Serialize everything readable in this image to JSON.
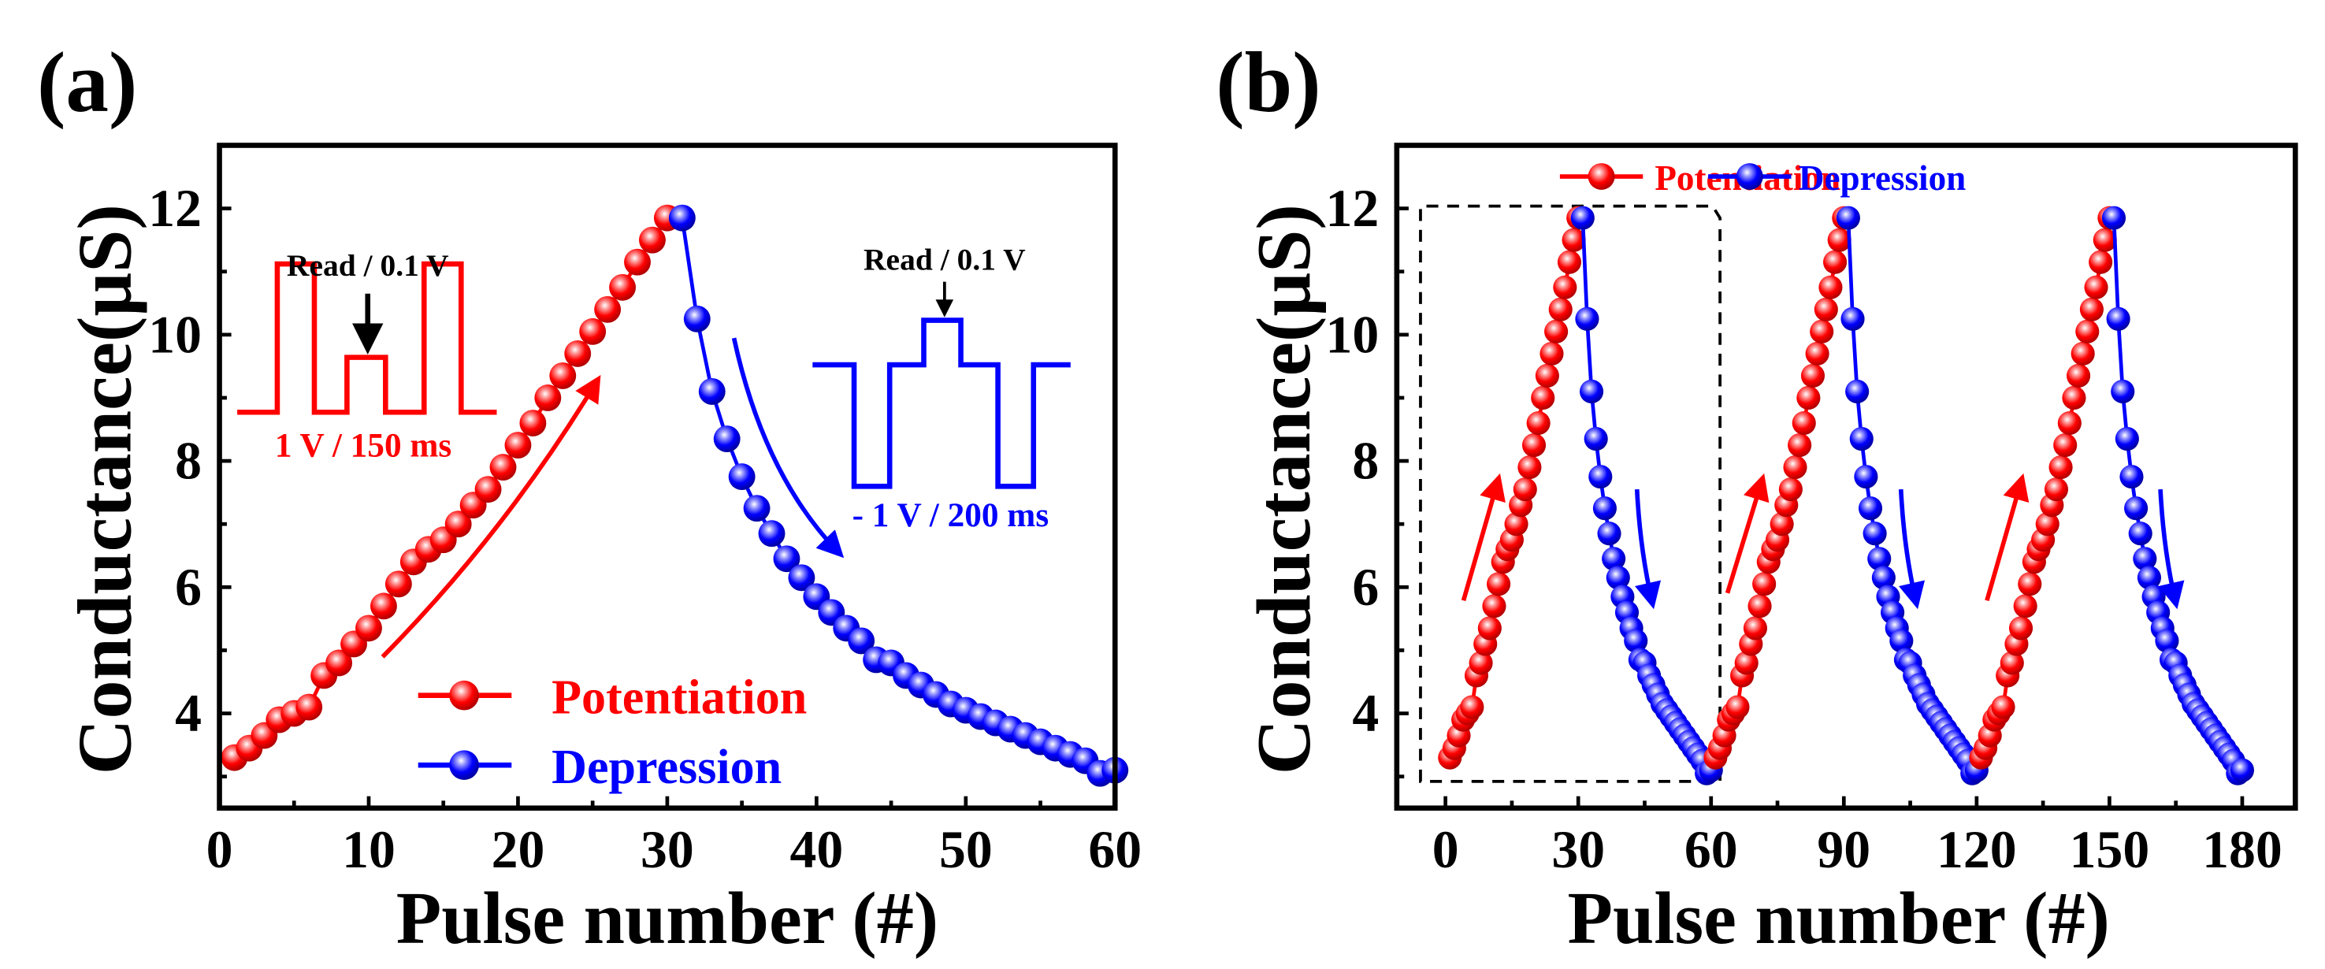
{
  "colors": {
    "potentiation": "#ff0000",
    "depression": "#0000ff",
    "axis": "#000000"
  },
  "chart_data": [
    {
      "panel_label": "(a)",
      "type": "scatter",
      "xlabel": "Pulse number (#)",
      "ylabel": "Conductance(μS)",
      "xlim": [
        0,
        60
      ],
      "ylim": [
        2.5,
        13
      ],
      "xticks": [
        "0",
        "10",
        "20",
        "30",
        "40",
        "50",
        "60"
      ],
      "xtick_values": [
        0,
        10,
        20,
        30,
        40,
        50,
        60
      ],
      "yticks": [
        "4",
        "6",
        "8",
        "10",
        "12"
      ],
      "ytick_values": [
        4,
        6,
        8,
        10,
        12
      ],
      "legend": {
        "placement": "bottom-center",
        "entries": [
          "Potentiation",
          "Depression"
        ]
      },
      "annotations": {
        "pot_read": "Read / 0.1 V",
        "pot_pulse": "1 V / 150 ms",
        "dep_read": "Read / 0.1 V",
        "dep_pulse": "- 1 V / 200 ms"
      },
      "series": [
        {
          "name": "Potentiation",
          "x_start": 1,
          "values": [
            3.3,
            3.45,
            3.65,
            3.9,
            4.0,
            4.1,
            4.6,
            4.8,
            5.1,
            5.35,
            5.7,
            6.05,
            6.4,
            6.6,
            6.75,
            7.0,
            7.3,
            7.55,
            7.9,
            8.25,
            8.6,
            9.0,
            9.35,
            9.7,
            10.05,
            10.4,
            10.75,
            11.15,
            11.5,
            11.85
          ]
        },
        {
          "name": "Depression",
          "x_start": 31,
          "values": [
            11.85,
            10.25,
            9.1,
            8.35,
            7.75,
            7.25,
            6.85,
            6.45,
            6.15,
            5.85,
            5.6,
            5.35,
            5.15,
            4.85,
            4.8,
            4.6,
            4.45,
            4.3,
            4.15,
            4.05,
            3.95,
            3.85,
            3.75,
            3.65,
            3.55,
            3.45,
            3.35,
            3.25,
            3.05,
            3.1
          ]
        }
      ]
    },
    {
      "panel_label": "(b)",
      "type": "scatter",
      "xlabel": "Pulse number (#)",
      "ylabel": "Conductance(μS)",
      "xlim": [
        -11,
        192
      ],
      "ylim": [
        2.5,
        13
      ],
      "xticks": [
        "0",
        "30",
        "60",
        "90",
        "120",
        "150",
        "180"
      ],
      "xtick_values": [
        0,
        30,
        60,
        90,
        120,
        150,
        180
      ],
      "yticks": [
        "4",
        "6",
        "8",
        "10",
        "12"
      ],
      "ytick_values": [
        4,
        6,
        8,
        10,
        12
      ],
      "legend": {
        "placement": "top-center",
        "entries": [
          "Potentiation",
          "Depression"
        ]
      },
      "cycles": 3,
      "cycle_length": 60,
      "series": [
        {
          "name": "Potentiation",
          "x_start": 1,
          "values": [
            3.3,
            3.45,
            3.65,
            3.9,
            4.0,
            4.1,
            4.6,
            4.8,
            5.1,
            5.35,
            5.7,
            6.05,
            6.4,
            6.6,
            6.75,
            7.0,
            7.3,
            7.55,
            7.9,
            8.25,
            8.6,
            9.0,
            9.35,
            9.7,
            10.05,
            10.4,
            10.75,
            11.15,
            11.5,
            11.85
          ]
        },
        {
          "name": "Depression",
          "x_start": 31,
          "values": [
            11.85,
            10.25,
            9.1,
            8.35,
            7.75,
            7.25,
            6.85,
            6.45,
            6.15,
            5.85,
            5.6,
            5.35,
            5.15,
            4.85,
            4.8,
            4.6,
            4.45,
            4.3,
            4.15,
            4.05,
            3.95,
            3.85,
            3.75,
            3.65,
            3.55,
            3.45,
            3.35,
            3.25,
            3.05,
            3.1
          ]
        }
      ]
    }
  ]
}
